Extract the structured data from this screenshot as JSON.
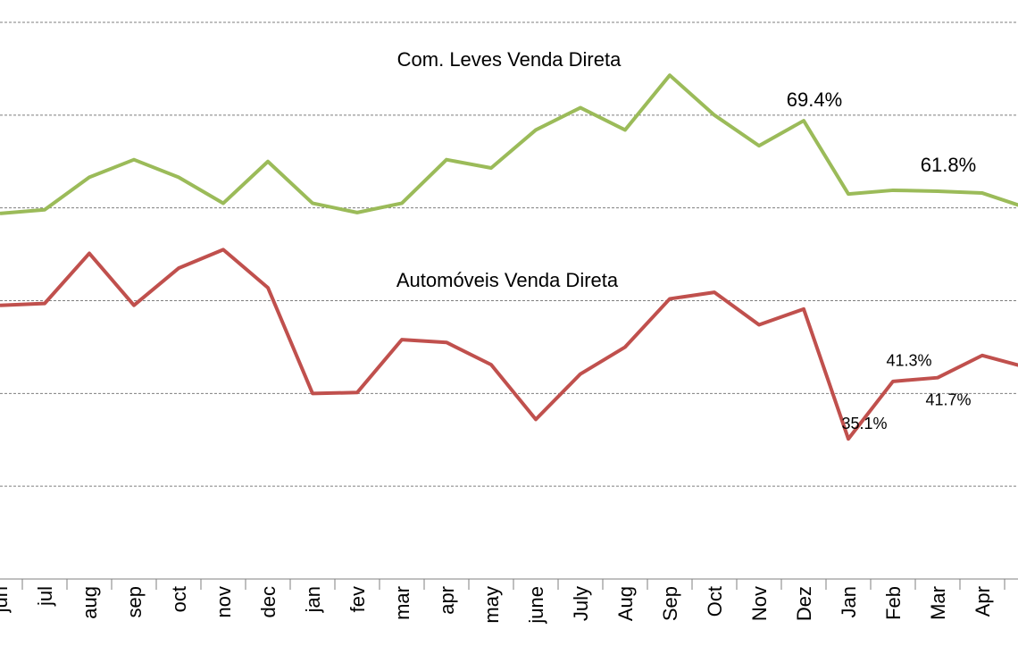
{
  "chart_data": {
    "type": "line",
    "categories": [
      "jun",
      "jul",
      "aug",
      "sep",
      "oct",
      "nov",
      "dec",
      "jan",
      "fev",
      "mar",
      "apr",
      "may",
      "june",
      "July",
      "Aug",
      "Sep",
      "Oct",
      "Nov",
      "Dez",
      "Jan",
      "Feb",
      "Mar",
      "Apr",
      null
    ],
    "series": [
      {
        "name": "Com. Leves Venda Direta",
        "color": "#9bbb59",
        "values": [
          59.4,
          59.8,
          63.3,
          65.2,
          63.3,
          60.5,
          65.0,
          60.5,
          59.5,
          60.5,
          65.2,
          64.3,
          68.4,
          70.8,
          68.4,
          74.3,
          70.0,
          66.7,
          69.4,
          61.5,
          61.9,
          61.8,
          61.6,
          60.0
        ],
        "value_labels": [
          null,
          null,
          null,
          null,
          null,
          null,
          null,
          null,
          null,
          null,
          null,
          null,
          null,
          null,
          null,
          null,
          null,
          null,
          "69.4%",
          null,
          null,
          "61.8%",
          null,
          null
        ]
      },
      {
        "name": "Automóveis Venda Direta",
        "color": "#c0504d",
        "values": [
          49.5,
          49.7,
          55.1,
          49.5,
          53.5,
          55.5,
          51.4,
          40.0,
          40.1,
          45.8,
          45.5,
          43.1,
          37.2,
          42.1,
          45.0,
          50.2,
          50.9,
          47.4,
          49.1,
          35.1,
          41.3,
          41.7,
          44.1,
          42.8
        ],
        "value_labels": [
          null,
          null,
          null,
          null,
          null,
          null,
          null,
          null,
          null,
          null,
          null,
          null,
          null,
          null,
          null,
          null,
          null,
          null,
          null,
          "35.1%",
          "41.3%",
          "41.7%",
          null,
          null
        ]
      }
    ],
    "ylim": [
      20,
      80
    ],
    "yticks": [
      20,
      30,
      40,
      50,
      60,
      70,
      80
    ],
    "grid": true
  }
}
